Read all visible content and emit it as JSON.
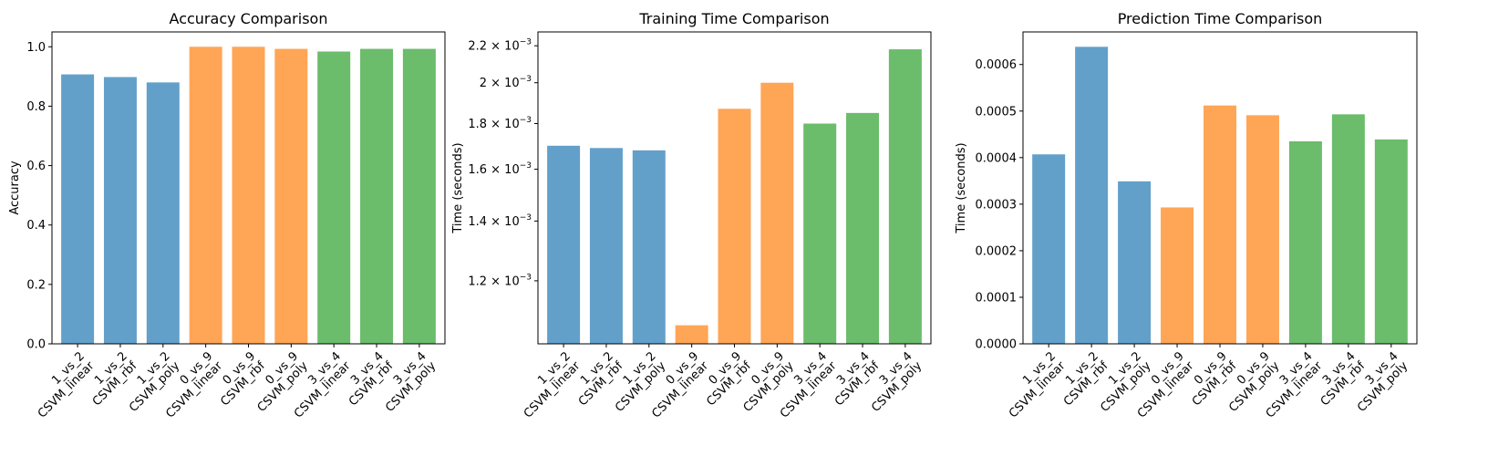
{
  "colors": {
    "group_1": "#1f77b4",
    "group_2": "#ff7f0e",
    "group_3": "#2ca02c"
  },
  "chart_data": [
    {
      "type": "bar",
      "title": "Accuracy Comparison",
      "xlabel": "",
      "ylabel": "Accuracy",
      "yscale": "linear",
      "ylim": [
        0,
        1.05
      ],
      "yticks": [
        0,
        0.2,
        0.4,
        0.6,
        0.8,
        1.0
      ],
      "ytick_labels": [
        "0.0",
        "0.2",
        "0.4",
        "0.6",
        "0.8",
        "1.0"
      ],
      "grid": false,
      "categories": [
        [
          "1_vs_2",
          "CSVM_linear"
        ],
        [
          "1_vs_2",
          "CSVM_rbf"
        ],
        [
          "1_vs_2",
          "CSVM_poly"
        ],
        [
          "0_vs_9",
          "CSVM_linear"
        ],
        [
          "0_vs_9",
          "CSVM_rbf"
        ],
        [
          "0_vs_9",
          "CSVM_poly"
        ],
        [
          "3_vs_4",
          "CSVM_linear"
        ],
        [
          "3_vs_4",
          "CSVM_rbf"
        ],
        [
          "3_vs_4",
          "CSVM_poly"
        ]
      ],
      "values": [
        0.907,
        0.898,
        0.88,
        1.0,
        1.0,
        0.993,
        0.984,
        0.993,
        0.993
      ]
    },
    {
      "type": "bar",
      "title": "Training Time Comparison",
      "xlabel": "",
      "ylabel": "Time (seconds)",
      "yscale": "log",
      "ylim": [
        0.00102,
        0.00228
      ],
      "yticks": [
        0.0012,
        0.0014,
        0.0016,
        0.0018,
        0.002,
        0.0022
      ],
      "ytick_labels": [
        [
          "1.2",
          "-3"
        ],
        [
          "1.4",
          "-3"
        ],
        [
          "1.6",
          "-3"
        ],
        [
          "1.8",
          "-3"
        ],
        [
          "2",
          "-3"
        ],
        [
          "2.2",
          "-3"
        ]
      ],
      "grid": false,
      "categories": [
        [
          "1_vs_2",
          "CSVM_linear"
        ],
        [
          "1_vs_2",
          "CSVM_rbf"
        ],
        [
          "1_vs_2",
          "CSVM_poly"
        ],
        [
          "0_vs_9",
          "CSVM_linear"
        ],
        [
          "0_vs_9",
          "CSVM_rbf"
        ],
        [
          "0_vs_9",
          "CSVM_poly"
        ],
        [
          "3_vs_4",
          "CSVM_linear"
        ],
        [
          "3_vs_4",
          "CSVM_rbf"
        ],
        [
          "3_vs_4",
          "CSVM_poly"
        ]
      ],
      "values": [
        0.0017,
        0.00169,
        0.00168,
        0.00107,
        0.00187,
        0.002,
        0.0018,
        0.00185,
        0.00218
      ]
    },
    {
      "type": "bar",
      "title": "Prediction Time Comparison",
      "xlabel": "",
      "ylabel": "Time (seconds)",
      "yscale": "linear",
      "ylim": [
        0,
        0.00067
      ],
      "yticks": [
        0,
        0.0001,
        0.0002,
        0.0003,
        0.0004,
        0.0005,
        0.0006
      ],
      "ytick_labels": [
        "0.0000",
        "0.0001",
        "0.0002",
        "0.0003",
        "0.0004",
        "0.0005",
        "0.0006"
      ],
      "grid": false,
      "categories": [
        [
          "1_vs_2",
          "CSVM_linear"
        ],
        [
          "1_vs_2",
          "CSVM_rbf"
        ],
        [
          "1_vs_2",
          "CSVM_poly"
        ],
        [
          "0_vs_9",
          "CSVM_linear"
        ],
        [
          "0_vs_9",
          "CSVM_rbf"
        ],
        [
          "0_vs_9",
          "CSVM_poly"
        ],
        [
          "3_vs_4",
          "CSVM_linear"
        ],
        [
          "3_vs_4",
          "CSVM_rbf"
        ],
        [
          "3_vs_4",
          "CSVM_poly"
        ]
      ],
      "values": [
        0.000407,
        0.000638,
        0.000349,
        0.000293,
        0.000512,
        0.000491,
        0.000435,
        0.000493,
        0.000439
      ]
    }
  ]
}
